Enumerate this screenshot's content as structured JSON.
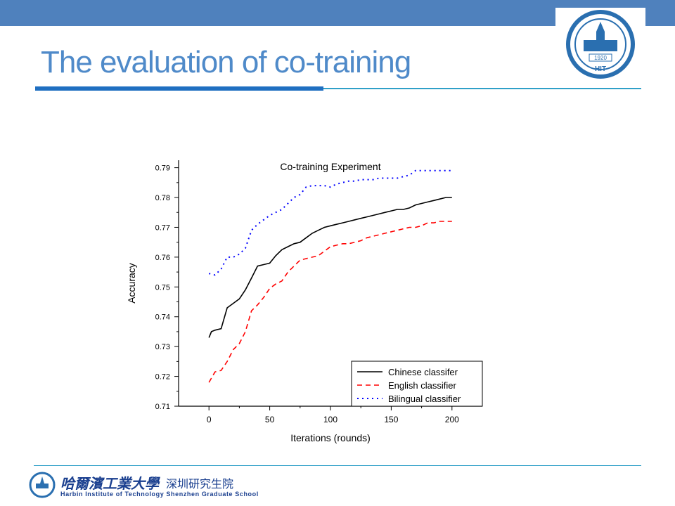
{
  "slide": {
    "title": "The evaluation of co-training"
  },
  "colors": {
    "top_bar": "#4f81bd",
    "title": "#4f8ac9",
    "rule_thick": "#1f6fc1",
    "rule_thin": "#2fa0c8",
    "logo_blue": "#2a6fb0",
    "footer_text": "#1a3f8f"
  },
  "logo": {
    "year": "1920",
    "letters": "HIT"
  },
  "footer": {
    "name_cn": "哈爾濱工業大學",
    "campus_cn": "深圳研究生院",
    "name_en": "Harbin  Institute  of  Technology  Shenzhen  Graduate  School"
  },
  "chart_data": {
    "type": "line",
    "title": "Co-training Experiment",
    "xlabel": "Iterations (rounds)",
    "ylabel": "Accuracy",
    "xlim": [
      -25,
      225
    ],
    "ylim": [
      0.71,
      0.7925
    ],
    "xticks": [
      0,
      50,
      100,
      150,
      200
    ],
    "yticks": [
      0.71,
      0.72,
      0.73,
      0.74,
      0.75,
      0.76,
      0.77,
      0.78,
      0.79
    ],
    "legend_position": "bottom-right",
    "grid": false,
    "series": [
      {
        "name": "Chinese classifer",
        "color": "#000000",
        "style": "solid",
        "x": [
          0,
          2,
          5,
          10,
          15,
          20,
          25,
          30,
          35,
          40,
          45,
          50,
          55,
          60,
          65,
          70,
          75,
          80,
          85,
          90,
          95,
          100,
          105,
          110,
          115,
          120,
          125,
          130,
          135,
          140,
          145,
          150,
          155,
          160,
          165,
          170,
          175,
          180,
          185,
          190,
          195,
          200
        ],
        "y": [
          0.733,
          0.735,
          0.7355,
          0.736,
          0.743,
          0.7445,
          0.746,
          0.749,
          0.753,
          0.757,
          0.7575,
          0.758,
          0.7605,
          0.7625,
          0.7635,
          0.7645,
          0.765,
          0.7665,
          0.768,
          0.769,
          0.77,
          0.7705,
          0.771,
          0.7715,
          0.772,
          0.7725,
          0.773,
          0.7735,
          0.774,
          0.7745,
          0.775,
          0.7755,
          0.776,
          0.776,
          0.7765,
          0.7775,
          0.778,
          0.7785,
          0.779,
          0.7795,
          0.78,
          0.78
        ]
      },
      {
        "name": "English classifier",
        "color": "#ff0000",
        "style": "dashed",
        "x": [
          0,
          5,
          10,
          15,
          20,
          25,
          30,
          35,
          40,
          45,
          50,
          55,
          60,
          65,
          70,
          75,
          80,
          85,
          90,
          95,
          100,
          105,
          110,
          115,
          120,
          125,
          130,
          135,
          140,
          145,
          150,
          155,
          160,
          165,
          170,
          175,
          180,
          185,
          190,
          195,
          200
        ],
        "y": [
          0.718,
          0.7215,
          0.722,
          0.725,
          0.729,
          0.731,
          0.735,
          0.742,
          0.744,
          0.7465,
          0.7495,
          0.751,
          0.752,
          0.755,
          0.757,
          0.759,
          0.7595,
          0.76,
          0.7605,
          0.762,
          0.7635,
          0.764,
          0.7645,
          0.7645,
          0.765,
          0.7655,
          0.7665,
          0.767,
          0.7675,
          0.768,
          0.7685,
          0.769,
          0.7695,
          0.77,
          0.77,
          0.7705,
          0.7715,
          0.7715,
          0.772,
          0.772,
          0.772
        ]
      },
      {
        "name": "Bilingual classifier",
        "color": "#0000ff",
        "style": "dotted",
        "x": [
          0,
          5,
          10,
          15,
          20,
          25,
          30,
          35,
          40,
          45,
          50,
          55,
          60,
          65,
          70,
          75,
          80,
          85,
          90,
          95,
          100,
          105,
          110,
          115,
          120,
          125,
          130,
          135,
          140,
          145,
          150,
          155,
          160,
          165,
          170,
          175,
          180,
          185,
          190,
          195,
          200
        ],
        "y": [
          0.7545,
          0.754,
          0.756,
          0.76,
          0.76,
          0.761,
          0.763,
          0.769,
          0.771,
          0.7725,
          0.774,
          0.775,
          0.776,
          0.778,
          0.78,
          0.781,
          0.7835,
          0.784,
          0.784,
          0.784,
          0.7835,
          0.7845,
          0.785,
          0.7855,
          0.7855,
          0.786,
          0.786,
          0.786,
          0.7865,
          0.7865,
          0.7865,
          0.7865,
          0.787,
          0.7875,
          0.789,
          0.789,
          0.789,
          0.789,
          0.789,
          0.789,
          0.789
        ]
      }
    ]
  }
}
